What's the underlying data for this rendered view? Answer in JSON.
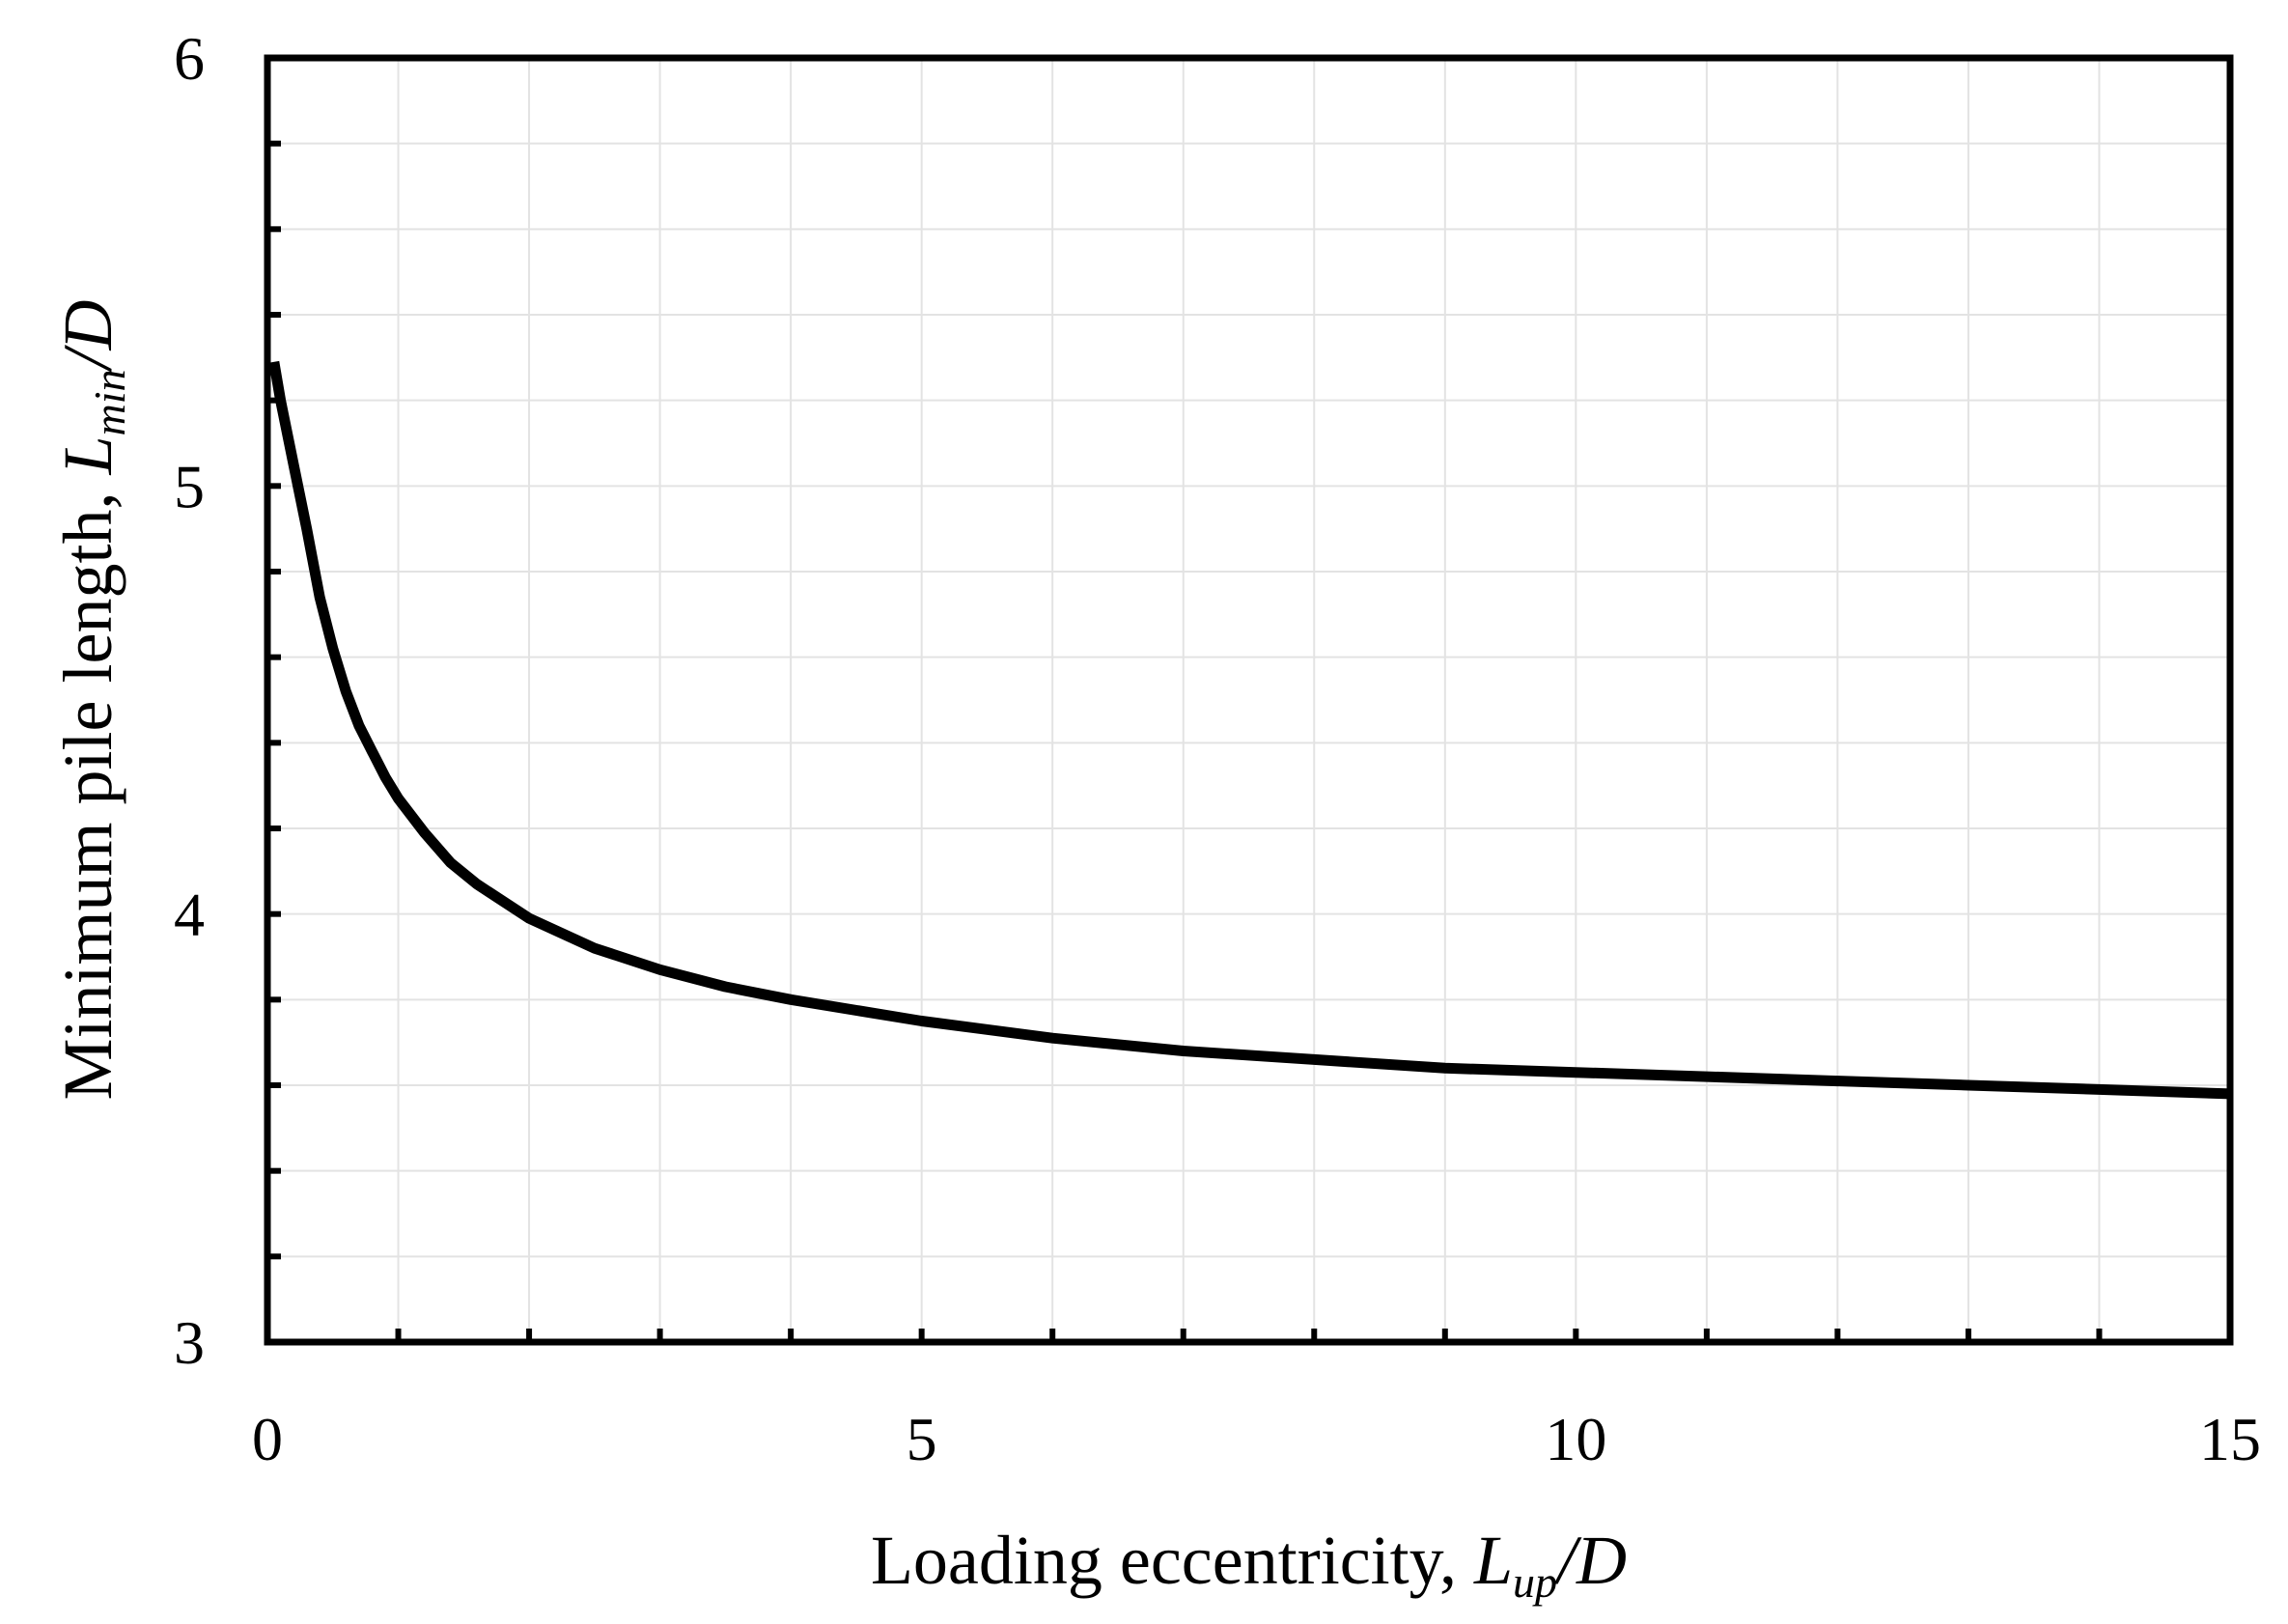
{
  "chart_data": {
    "type": "line",
    "title": "",
    "xlabel": {
      "prefix": "Loading eccentricity, ",
      "symbol": "L",
      "subscript": "up",
      "suffix": "/D"
    },
    "ylabel": {
      "prefix": "Minimum pile length, ",
      "symbol": "L",
      "subscript": "min",
      "suffix": "/D"
    },
    "xlim": [
      0,
      15
    ],
    "ylim": [
      3,
      6
    ],
    "x_major_ticks": [
      "0",
      "5",
      "10",
      "15"
    ],
    "y_major_ticks": [
      "3",
      "4",
      "5",
      "6"
    ],
    "x_minor_step": 1,
    "y_minor_step": 0.2,
    "grid": true,
    "line_color": "#000000",
    "series": [
      {
        "x": [
          0.05,
          0.1,
          0.2,
          0.3,
          0.4,
          0.5,
          0.6,
          0.7,
          0.8,
          0.9,
          1.0,
          1.2,
          1.4,
          1.6,
          1.8,
          2.0,
          2.5,
          3.0,
          3.5,
          4.0,
          5.0,
          6.0,
          7.0,
          8.0,
          9.0,
          10.0,
          11.0,
          12.0,
          13.0,
          14.0,
          15.0
        ],
        "y": [
          5.29,
          5.2,
          5.05,
          4.9,
          4.74,
          4.62,
          4.52,
          4.44,
          4.38,
          4.32,
          4.27,
          4.19,
          4.12,
          4.07,
          4.03,
          3.99,
          3.92,
          3.87,
          3.83,
          3.8,
          3.75,
          3.71,
          3.68,
          3.66,
          3.64,
          3.63,
          3.62,
          3.61,
          3.6,
          3.59,
          3.58
        ]
      }
    ]
  }
}
